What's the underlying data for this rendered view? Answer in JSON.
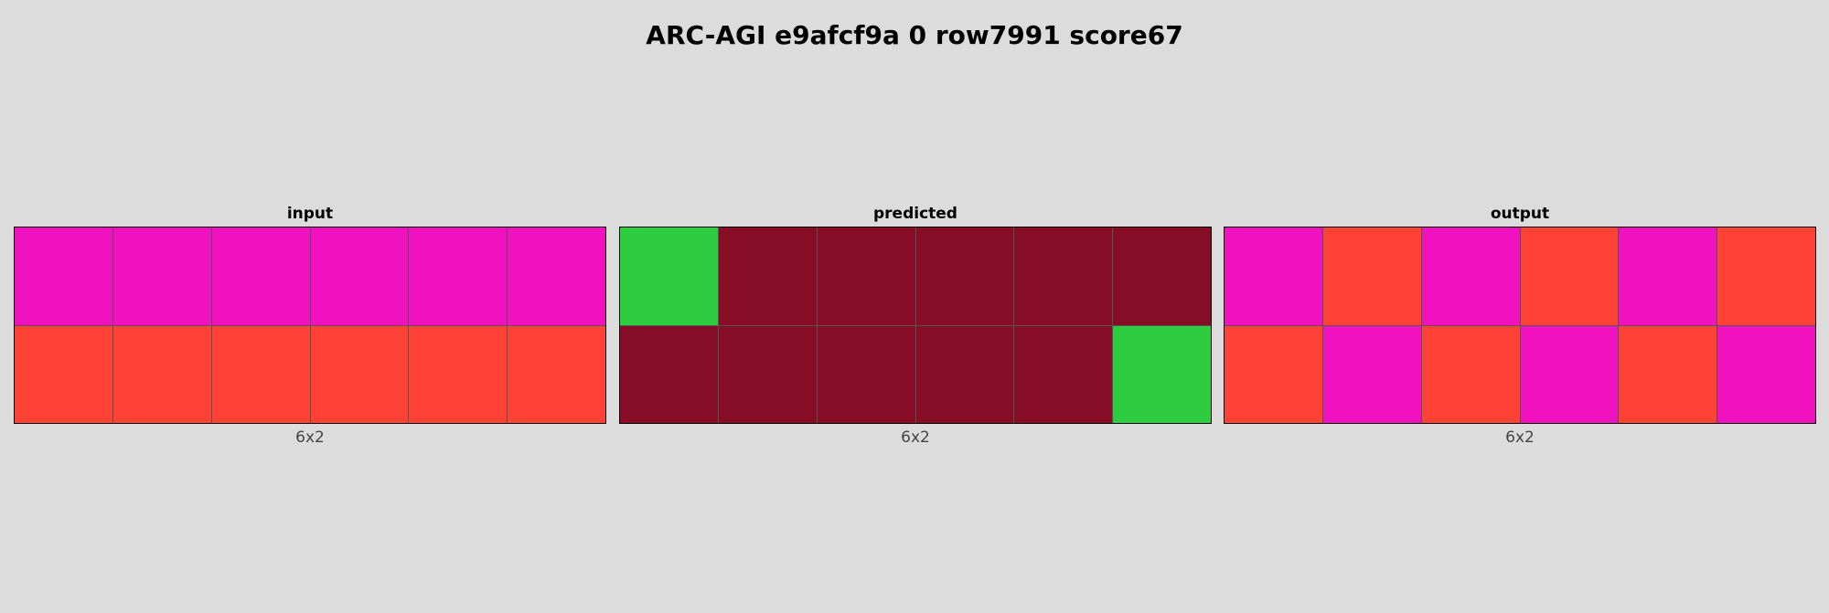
{
  "title": "ARC-AGI e9afcf9a 0 row7991 score67",
  "palette": {
    "3": "#2ecc40",
    "6": "#f012be",
    "2": "#ff4136",
    "9": "#870c25"
  },
  "panels": [
    {
      "label": "input",
      "dims": "6x2",
      "cols": 6,
      "rows": [
        [
          6,
          6,
          6,
          6,
          6,
          6
        ],
        [
          2,
          2,
          2,
          2,
          2,
          2
        ]
      ]
    },
    {
      "label": "predicted",
      "dims": "6x2",
      "cols": 6,
      "rows": [
        [
          3,
          9,
          9,
          9,
          9,
          9
        ],
        [
          9,
          9,
          9,
          9,
          9,
          3
        ]
      ]
    },
    {
      "label": "output",
      "dims": "6x2",
      "cols": 6,
      "rows": [
        [
          6,
          2,
          6,
          2,
          6,
          2
        ],
        [
          2,
          6,
          2,
          6,
          2,
          6
        ]
      ]
    }
  ]
}
